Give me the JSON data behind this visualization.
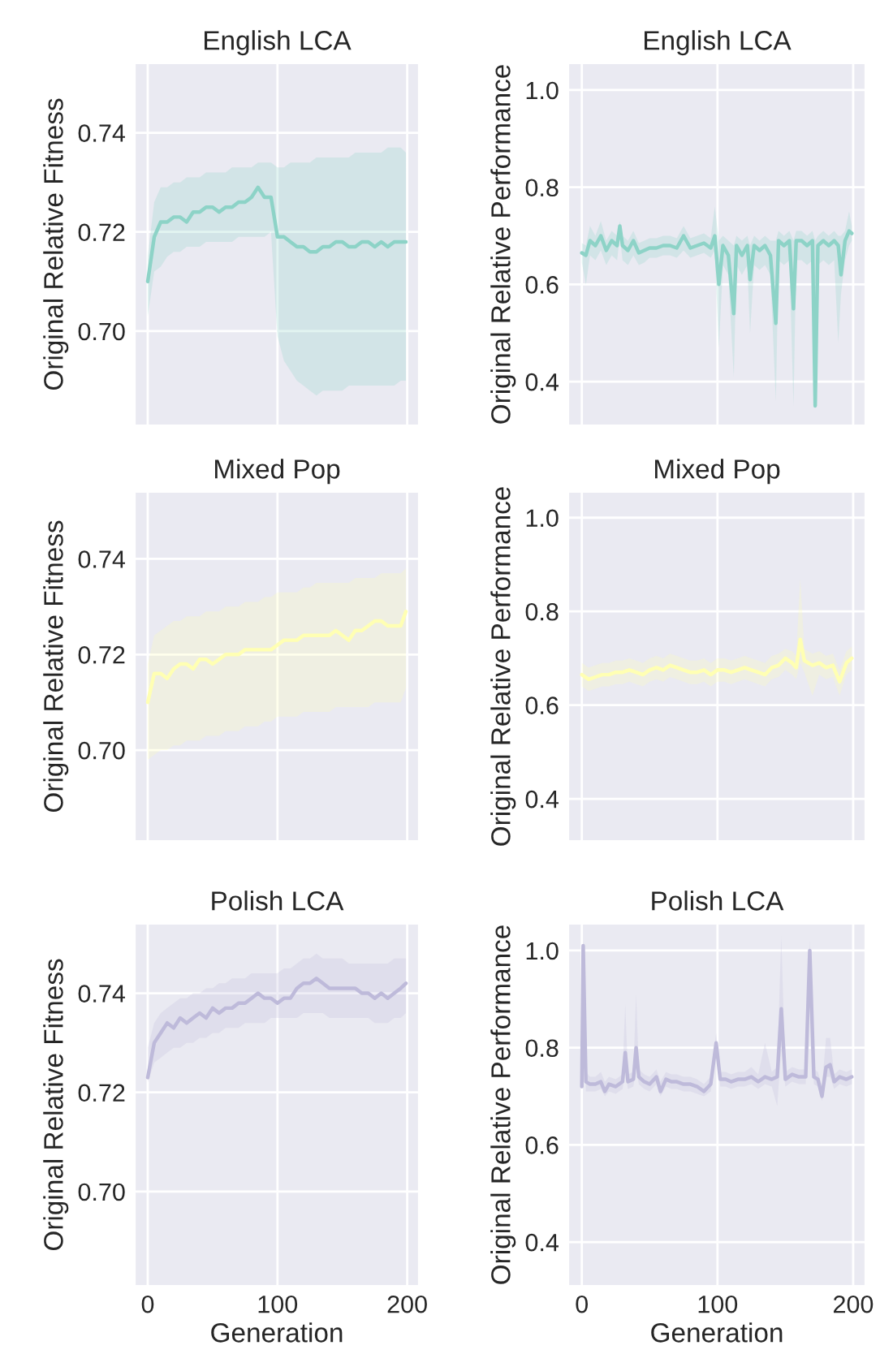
{
  "chart_data": [
    {
      "type": "line",
      "title": "English LCA",
      "ylabel": "Original Relative Fitness",
      "xlim": [
        -10,
        209
      ],
      "xticks": [
        0,
        100,
        200
      ],
      "ylim": [
        0.681,
        0.754
      ],
      "yticks": [
        {
          "value": 0.7,
          "label": "0.70"
        },
        {
          "value": 0.72,
          "label": "0.72"
        },
        {
          "value": 0.74,
          "label": "0.74"
        }
      ],
      "grid": true,
      "tick_labels": "y",
      "series": [
        {
          "color": "#8dd3c7",
          "x": [
            0,
            5,
            10,
            15,
            20,
            25,
            30,
            35,
            40,
            45,
            50,
            55,
            60,
            65,
            70,
            75,
            80,
            85,
            90,
            95,
            100,
            105,
            110,
            115,
            120,
            125,
            130,
            135,
            140,
            145,
            150,
            155,
            160,
            165,
            170,
            175,
            180,
            185,
            190,
            195,
            199
          ],
          "values": [
            0.71,
            0.719,
            0.722,
            0.722,
            0.723,
            0.723,
            0.722,
            0.724,
            0.724,
            0.725,
            0.725,
            0.724,
            0.725,
            0.725,
            0.726,
            0.726,
            0.727,
            0.729,
            0.727,
            0.727,
            0.719,
            0.719,
            0.718,
            0.717,
            0.717,
            0.716,
            0.716,
            0.717,
            0.717,
            0.718,
            0.718,
            0.717,
            0.717,
            0.718,
            0.718,
            0.717,
            0.718,
            0.717,
            0.718,
            0.718,
            0.718
          ],
          "lower": [
            0.703,
            0.712,
            0.713,
            0.715,
            0.716,
            0.716,
            0.717,
            0.717,
            0.717,
            0.718,
            0.718,
            0.718,
            0.718,
            0.718,
            0.719,
            0.719,
            0.719,
            0.719,
            0.719,
            0.72,
            0.699,
            0.694,
            0.692,
            0.69,
            0.689,
            0.688,
            0.687,
            0.688,
            0.688,
            0.688,
            0.688,
            0.689,
            0.689,
            0.689,
            0.689,
            0.689,
            0.689,
            0.689,
            0.689,
            0.69,
            0.69
          ],
          "upper": [
            0.715,
            0.726,
            0.729,
            0.729,
            0.73,
            0.73,
            0.731,
            0.731,
            0.731,
            0.732,
            0.732,
            0.732,
            0.732,
            0.733,
            0.733,
            0.733,
            0.733,
            0.734,
            0.734,
            0.734,
            0.733,
            0.733,
            0.734,
            0.734,
            0.734,
            0.734,
            0.735,
            0.735,
            0.735,
            0.735,
            0.735,
            0.735,
            0.736,
            0.736,
            0.736,
            0.736,
            0.736,
            0.737,
            0.737,
            0.737,
            0.736
          ]
        }
      ]
    },
    {
      "type": "line",
      "title": "English LCA",
      "ylabel": "Original Relative Performance",
      "xlim": [
        -10,
        209
      ],
      "xticks": [
        0,
        100,
        200
      ],
      "ylim": [
        0.31,
        1.055
      ],
      "yticks": [
        {
          "value": 0.4,
          "label": "0.4"
        },
        {
          "value": 0.6,
          "label": "0.6"
        },
        {
          "value": 0.8,
          "label": "0.8"
        },
        {
          "value": 1.0,
          "label": "1.0"
        }
      ],
      "grid": true,
      "tick_labels": "y",
      "series": [
        {
          "color": "#8dd3c7",
          "x": [
            0,
            3,
            6,
            10,
            14,
            18,
            22,
            26,
            28,
            30,
            34,
            38,
            42,
            46,
            50,
            55,
            60,
            65,
            70,
            75,
            80,
            85,
            90,
            95,
            98,
            101,
            104,
            108,
            112,
            114,
            118,
            122,
            124,
            127,
            131,
            135,
            139,
            143,
            145,
            149,
            153,
            156,
            158,
            162,
            166,
            170,
            172,
            174,
            178,
            182,
            186,
            189,
            191,
            194,
            197,
            199
          ],
          "values": [
            0.665,
            0.66,
            0.69,
            0.68,
            0.7,
            0.67,
            0.69,
            0.68,
            0.72,
            0.68,
            0.67,
            0.69,
            0.665,
            0.67,
            0.675,
            0.675,
            0.68,
            0.68,
            0.675,
            0.7,
            0.675,
            0.68,
            0.685,
            0.675,
            0.7,
            0.6,
            0.68,
            0.66,
            0.54,
            0.68,
            0.66,
            0.68,
            0.61,
            0.68,
            0.67,
            0.68,
            0.66,
            0.52,
            0.69,
            0.68,
            0.69,
            0.55,
            0.69,
            0.69,
            0.68,
            0.69,
            0.35,
            0.68,
            0.69,
            0.68,
            0.69,
            0.68,
            0.62,
            0.69,
            0.71,
            0.705
          ],
          "lower": [
            0.645,
            0.6,
            0.66,
            0.65,
            0.67,
            0.64,
            0.66,
            0.65,
            0.7,
            0.65,
            0.64,
            0.66,
            0.64,
            0.645,
            0.655,
            0.655,
            0.66,
            0.66,
            0.655,
            0.67,
            0.655,
            0.66,
            0.665,
            0.655,
            0.67,
            0.47,
            0.64,
            0.62,
            0.41,
            0.64,
            0.62,
            0.64,
            0.5,
            0.64,
            0.63,
            0.64,
            0.62,
            0.36,
            0.65,
            0.64,
            0.65,
            0.35,
            0.65,
            0.65,
            0.64,
            0.65,
            0.35,
            0.64,
            0.65,
            0.64,
            0.65,
            0.48,
            0.58,
            0.65,
            0.68,
            0.69
          ],
          "upper": [
            0.685,
            0.68,
            0.72,
            0.7,
            0.73,
            0.69,
            0.71,
            0.7,
            0.73,
            0.7,
            0.69,
            0.71,
            0.685,
            0.69,
            0.695,
            0.695,
            0.7,
            0.7,
            0.695,
            0.72,
            0.695,
            0.7,
            0.705,
            0.695,
            0.76,
            0.69,
            0.7,
            0.69,
            0.68,
            0.7,
            0.69,
            0.7,
            0.68,
            0.7,
            0.69,
            0.7,
            0.69,
            0.69,
            0.71,
            0.7,
            0.71,
            0.69,
            0.71,
            0.71,
            0.7,
            0.71,
            0.69,
            0.7,
            0.71,
            0.7,
            0.71,
            0.7,
            0.7,
            0.71,
            0.75,
            0.72
          ]
        }
      ]
    },
    {
      "type": "line",
      "title": "Mixed Pop",
      "ylabel": "Original Relative Fitness",
      "xlim": [
        -10,
        209
      ],
      "xticks": [
        0,
        100,
        200
      ],
      "ylim": [
        0.681,
        0.754
      ],
      "yticks": [
        {
          "value": 0.7,
          "label": "0.70"
        },
        {
          "value": 0.72,
          "label": "0.72"
        },
        {
          "value": 0.74,
          "label": "0.74"
        }
      ],
      "grid": true,
      "tick_labels": "y",
      "series": [
        {
          "color": "#ffffb3",
          "x": [
            0,
            5,
            10,
            15,
            20,
            25,
            30,
            35,
            40,
            45,
            50,
            55,
            60,
            65,
            70,
            75,
            80,
            85,
            90,
            95,
            100,
            105,
            110,
            115,
            120,
            125,
            130,
            135,
            140,
            145,
            150,
            155,
            160,
            165,
            170,
            175,
            180,
            185,
            190,
            195,
            199
          ],
          "values": [
            0.71,
            0.716,
            0.716,
            0.715,
            0.717,
            0.718,
            0.718,
            0.717,
            0.719,
            0.719,
            0.718,
            0.719,
            0.72,
            0.72,
            0.72,
            0.721,
            0.721,
            0.721,
            0.721,
            0.721,
            0.722,
            0.723,
            0.723,
            0.723,
            0.724,
            0.724,
            0.724,
            0.724,
            0.724,
            0.725,
            0.724,
            0.723,
            0.725,
            0.725,
            0.726,
            0.727,
            0.727,
            0.726,
            0.726,
            0.726,
            0.729
          ],
          "lower": [
            0.698,
            0.699,
            0.7,
            0.7,
            0.701,
            0.701,
            0.702,
            0.702,
            0.702,
            0.703,
            0.703,
            0.703,
            0.704,
            0.704,
            0.704,
            0.705,
            0.705,
            0.705,
            0.706,
            0.706,
            0.707,
            0.707,
            0.707,
            0.707,
            0.708,
            0.708,
            0.708,
            0.708,
            0.708,
            0.709,
            0.709,
            0.709,
            0.709,
            0.709,
            0.709,
            0.71,
            0.71,
            0.71,
            0.71,
            0.71,
            0.713
          ],
          "upper": [
            0.718,
            0.724,
            0.725,
            0.726,
            0.727,
            0.727,
            0.728,
            0.728,
            0.728,
            0.729,
            0.729,
            0.729,
            0.73,
            0.73,
            0.73,
            0.731,
            0.731,
            0.731,
            0.732,
            0.732,
            0.733,
            0.733,
            0.733,
            0.733,
            0.734,
            0.734,
            0.735,
            0.735,
            0.735,
            0.735,
            0.735,
            0.735,
            0.736,
            0.736,
            0.736,
            0.736,
            0.737,
            0.737,
            0.737,
            0.737,
            0.738
          ]
        }
      ]
    },
    {
      "type": "line",
      "title": "Mixed Pop",
      "ylabel": "Original Relative Performance",
      "xlim": [
        -10,
        209
      ],
      "xticks": [
        0,
        100,
        200
      ],
      "ylim": [
        0.31,
        1.055
      ],
      "yticks": [
        {
          "value": 0.4,
          "label": "0.4"
        },
        {
          "value": 0.6,
          "label": "0.6"
        },
        {
          "value": 0.8,
          "label": "0.8"
        },
        {
          "value": 1.0,
          "label": "1.0"
        }
      ],
      "grid": true,
      "tick_labels": "y",
      "series": [
        {
          "color": "#ffffb3",
          "x": [
            0,
            5,
            10,
            15,
            20,
            25,
            30,
            35,
            40,
            45,
            50,
            55,
            60,
            65,
            70,
            75,
            80,
            85,
            90,
            95,
            100,
            105,
            110,
            115,
            120,
            125,
            130,
            135,
            140,
            145,
            150,
            155,
            158,
            161,
            164,
            170,
            175,
            180,
            185,
            190,
            195,
            199
          ],
          "values": [
            0.665,
            0.655,
            0.66,
            0.665,
            0.665,
            0.67,
            0.67,
            0.675,
            0.67,
            0.665,
            0.675,
            0.68,
            0.675,
            0.685,
            0.68,
            0.675,
            0.67,
            0.67,
            0.675,
            0.665,
            0.675,
            0.675,
            0.67,
            0.675,
            0.68,
            0.675,
            0.67,
            0.665,
            0.68,
            0.685,
            0.7,
            0.69,
            0.68,
            0.74,
            0.695,
            0.685,
            0.69,
            0.68,
            0.685,
            0.65,
            0.69,
            0.7
          ],
          "lower": [
            0.64,
            0.63,
            0.635,
            0.64,
            0.64,
            0.645,
            0.645,
            0.65,
            0.645,
            0.64,
            0.65,
            0.655,
            0.65,
            0.66,
            0.655,
            0.65,
            0.645,
            0.645,
            0.65,
            0.64,
            0.65,
            0.65,
            0.645,
            0.65,
            0.655,
            0.65,
            0.645,
            0.64,
            0.655,
            0.66,
            0.675,
            0.665,
            0.655,
            0.69,
            0.67,
            0.62,
            0.665,
            0.655,
            0.66,
            0.62,
            0.665,
            0.675
          ],
          "upper": [
            0.69,
            0.68,
            0.685,
            0.69,
            0.69,
            0.695,
            0.695,
            0.7,
            0.695,
            0.69,
            0.7,
            0.705,
            0.7,
            0.71,
            0.705,
            0.7,
            0.695,
            0.695,
            0.7,
            0.69,
            0.7,
            0.7,
            0.695,
            0.7,
            0.705,
            0.7,
            0.695,
            0.69,
            0.705,
            0.71,
            0.72,
            0.715,
            0.705,
            0.87,
            0.72,
            0.71,
            0.715,
            0.705,
            0.71,
            0.675,
            0.715,
            0.725
          ]
        }
      ]
    },
    {
      "type": "line",
      "title": "Polish LCA",
      "ylabel": "Original Relative Fitness",
      "xlabel": "Generation",
      "xlim": [
        -10,
        209
      ],
      "xticks": [
        0,
        100,
        200
      ],
      "ylim": [
        0.681,
        0.754
      ],
      "yticks": [
        {
          "value": 0.7,
          "label": "0.70"
        },
        {
          "value": 0.72,
          "label": "0.72"
        },
        {
          "value": 0.74,
          "label": "0.74"
        }
      ],
      "grid": true,
      "series": [
        {
          "color": "#bebada",
          "x": [
            0,
            5,
            10,
            15,
            20,
            25,
            30,
            35,
            40,
            45,
            50,
            55,
            60,
            65,
            70,
            75,
            80,
            85,
            90,
            95,
            100,
            105,
            110,
            115,
            120,
            125,
            130,
            135,
            140,
            145,
            150,
            155,
            160,
            165,
            170,
            175,
            180,
            185,
            190,
            195,
            199
          ],
          "values": [
            0.723,
            0.73,
            0.732,
            0.734,
            0.733,
            0.735,
            0.734,
            0.735,
            0.736,
            0.735,
            0.737,
            0.736,
            0.737,
            0.737,
            0.738,
            0.738,
            0.739,
            0.74,
            0.739,
            0.739,
            0.738,
            0.739,
            0.739,
            0.741,
            0.742,
            0.742,
            0.743,
            0.742,
            0.741,
            0.741,
            0.741,
            0.741,
            0.741,
            0.74,
            0.74,
            0.739,
            0.74,
            0.739,
            0.74,
            0.741,
            0.742
          ],
          "lower": [
            0.722,
            0.726,
            0.727,
            0.728,
            0.729,
            0.729,
            0.73,
            0.73,
            0.731,
            0.731,
            0.732,
            0.732,
            0.733,
            0.733,
            0.733,
            0.734,
            0.734,
            0.734,
            0.734,
            0.735,
            0.735,
            0.735,
            0.735,
            0.735,
            0.736,
            0.736,
            0.736,
            0.736,
            0.735,
            0.735,
            0.735,
            0.735,
            0.735,
            0.735,
            0.735,
            0.734,
            0.734,
            0.734,
            0.735,
            0.735,
            0.736
          ],
          "upper": [
            0.729,
            0.734,
            0.736,
            0.737,
            0.738,
            0.739,
            0.739,
            0.74,
            0.74,
            0.741,
            0.741,
            0.742,
            0.742,
            0.743,
            0.743,
            0.743,
            0.744,
            0.744,
            0.744,
            0.744,
            0.744,
            0.745,
            0.745,
            0.746,
            0.747,
            0.747,
            0.748,
            0.747,
            0.747,
            0.747,
            0.747,
            0.746,
            0.746,
            0.746,
            0.746,
            0.746,
            0.746,
            0.746,
            0.747,
            0.747,
            0.747
          ]
        }
      ]
    },
    {
      "type": "line",
      "title": "Polish LCA",
      "ylabel": "Original Relative Performance",
      "xlabel": "Generation",
      "xlim": [
        -10,
        209
      ],
      "xticks": [
        0,
        100,
        200
      ],
      "ylim": [
        0.31,
        1.055
      ],
      "yticks": [
        {
          "value": 0.4,
          "label": "0.4"
        },
        {
          "value": 0.6,
          "label": "0.6"
        },
        {
          "value": 0.8,
          "label": "0.8"
        },
        {
          "value": 1.0,
          "label": "1.0"
        }
      ],
      "grid": true,
      "series": [
        {
          "color": "#bebada",
          "x": [
            0,
            1,
            3,
            6,
            10,
            14,
            17,
            20,
            25,
            30,
            32,
            34,
            38,
            40,
            42,
            46,
            50,
            55,
            58,
            62,
            66,
            70,
            75,
            80,
            85,
            90,
            95,
            99,
            102,
            106,
            110,
            115,
            120,
            125,
            130,
            135,
            140,
            144,
            147,
            150,
            155,
            160,
            165,
            168,
            171,
            174,
            177,
            180,
            183,
            186,
            190,
            195,
            199
          ],
          "values": [
            0.72,
            1.01,
            0.73,
            0.725,
            0.725,
            0.73,
            0.71,
            0.725,
            0.72,
            0.73,
            0.79,
            0.73,
            0.735,
            0.8,
            0.74,
            0.73,
            0.725,
            0.74,
            0.71,
            0.735,
            0.73,
            0.73,
            0.725,
            0.725,
            0.72,
            0.71,
            0.725,
            0.81,
            0.735,
            0.735,
            0.73,
            0.735,
            0.735,
            0.74,
            0.73,
            0.74,
            0.735,
            0.74,
            0.88,
            0.735,
            0.745,
            0.74,
            0.74,
            1.0,
            0.74,
            0.735,
            0.7,
            0.76,
            0.765,
            0.73,
            0.74,
            0.735,
            0.74
          ],
          "lower": [
            0.71,
            1.0,
            0.71,
            0.71,
            0.71,
            0.715,
            0.7,
            0.71,
            0.705,
            0.715,
            0.75,
            0.715,
            0.72,
            0.76,
            0.725,
            0.715,
            0.71,
            0.725,
            0.7,
            0.72,
            0.715,
            0.715,
            0.71,
            0.71,
            0.705,
            0.7,
            0.71,
            0.79,
            0.72,
            0.72,
            0.715,
            0.72,
            0.72,
            0.725,
            0.715,
            0.725,
            0.72,
            0.68,
            0.8,
            0.72,
            0.73,
            0.725,
            0.725,
            0.98,
            0.725,
            0.72,
            0.69,
            0.74,
            0.74,
            0.715,
            0.725,
            0.72,
            0.725
          ],
          "upper": [
            0.73,
            1.02,
            0.75,
            0.74,
            0.74,
            0.75,
            0.73,
            0.74,
            0.735,
            0.745,
            0.89,
            0.745,
            0.75,
            0.91,
            0.755,
            0.745,
            0.74,
            0.755,
            0.73,
            0.75,
            0.745,
            0.745,
            0.74,
            0.74,
            0.735,
            0.725,
            0.74,
            0.83,
            0.75,
            0.75,
            0.745,
            0.75,
            0.75,
            0.76,
            0.745,
            0.81,
            0.75,
            0.76,
            1.03,
            0.75,
            0.76,
            0.755,
            0.755,
            1.02,
            0.755,
            0.75,
            0.72,
            0.82,
            0.82,
            0.745,
            0.755,
            0.75,
            0.755
          ]
        }
      ]
    }
  ]
}
